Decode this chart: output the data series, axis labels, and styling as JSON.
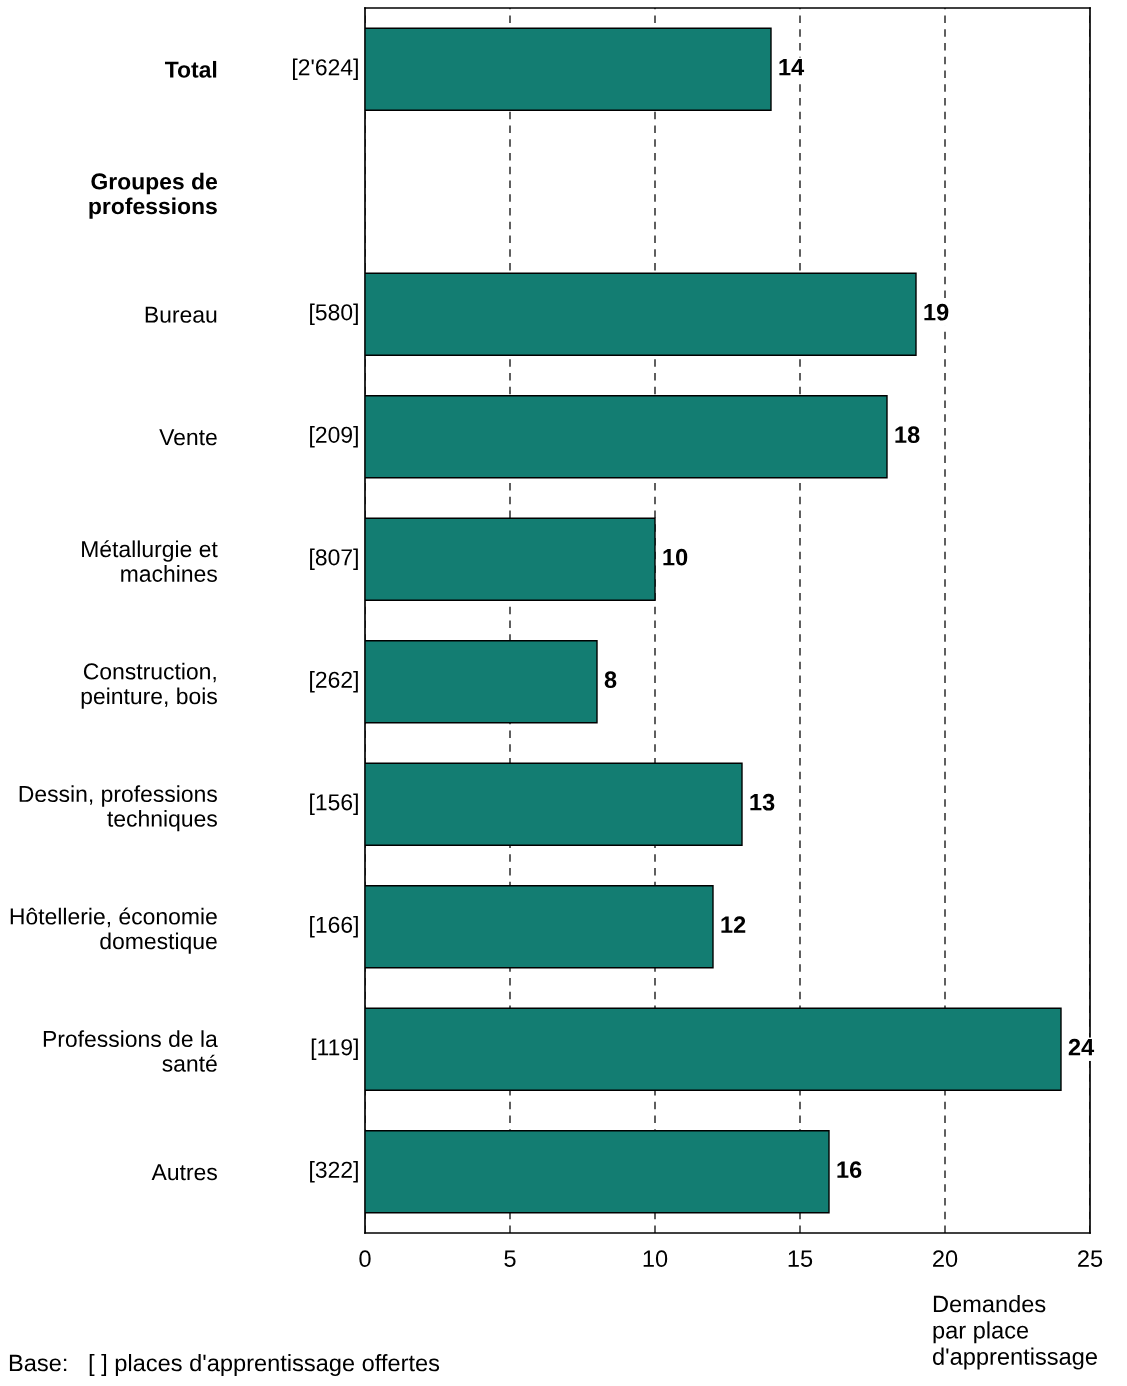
{
  "chart_data": {
    "type": "bar",
    "orientation": "horizontal",
    "categories": [
      "Total",
      "Groupes de\nprofessions",
      "Bureau",
      "Vente",
      "Métallurgie et\nmachines",
      "Construction,\npeinture, bois",
      "Dessin, professions\ntechniques",
      "Hôtellerie, économie\ndomestique",
      "Professions de la\nsanté",
      "Autres"
    ],
    "values": [
      14,
      null,
      19,
      18,
      10,
      8,
      13,
      12,
      24,
      16
    ],
    "color": "#137d72",
    "data_labels": true,
    "xlim": [
      0,
      25
    ],
    "xticks": [
      0,
      5,
      10,
      15,
      20,
      25
    ],
    "xlabel": "Demandes\npar place\nd'apprentissage",
    "grid": "x",
    "annotations": [
      "[2'624]",
      "[580]",
      "[209]",
      "[807]",
      "[262]",
      "[156]",
      "[166]",
      "[119]",
      "[322]",
      "Base:   [ ] places d'apprentissage offertes"
    ]
  }
}
